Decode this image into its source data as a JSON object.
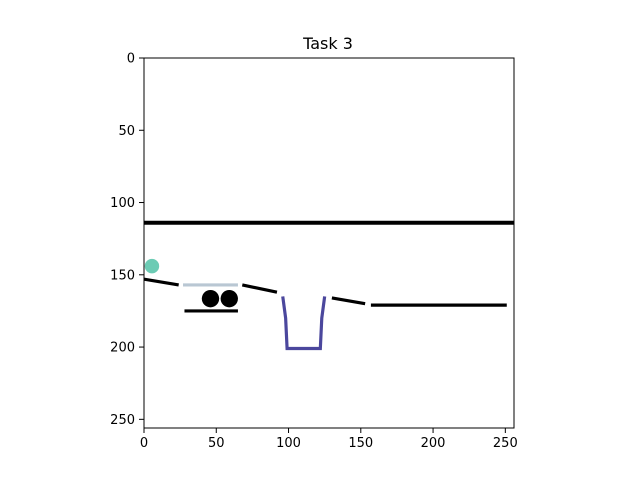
{
  "title": "Task 3",
  "axes": {
    "x_range": [
      0,
      256
    ],
    "y_range": [
      256,
      0
    ],
    "x_ticks": [
      0,
      50,
      100,
      150,
      200,
      250
    ],
    "y_ticks": [
      0,
      50,
      100,
      150,
      200,
      250
    ],
    "y_inverted": true
  },
  "scene": {
    "ball": {
      "name": "teal-ball",
      "color": "#6ccbb4",
      "cx": 5.5,
      "cy": 144,
      "r": 5
    },
    "bars": [
      {
        "name": "top-long-bar",
        "color": "#000000",
        "points": [
          [
            -1,
            114
          ],
          [
            257,
            114
          ]
        ],
        "width": 5
      },
      {
        "name": "left-ramp",
        "color": "#000000",
        "points": [
          [
            0,
            153
          ],
          [
            24,
            157
          ]
        ],
        "width": 4
      },
      {
        "name": "grey-plank",
        "color": "#b9c7d3",
        "points": [
          [
            27,
            157
          ],
          [
            65,
            157
          ]
        ],
        "width": 4
      },
      {
        "name": "middle-ramp",
        "color": "#000000",
        "points": [
          [
            68,
            157
          ],
          [
            92,
            162
          ]
        ],
        "width": 4
      },
      {
        "name": "right-ramp",
        "color": "#000000",
        "points": [
          [
            130,
            166
          ],
          [
            153,
            170
          ]
        ],
        "width": 4
      },
      {
        "name": "right-long-bar",
        "color": "#000000",
        "points": [
          [
            157,
            171
          ],
          [
            251,
            171
          ]
        ],
        "width": 4
      },
      {
        "name": "cart-base",
        "color": "#000000",
        "points": [
          [
            28,
            175
          ],
          [
            65,
            175
          ]
        ],
        "width": 4
      }
    ],
    "wheels": [
      {
        "name": "cart-wheel-left",
        "cx": 46,
        "cy": 166.5,
        "r": 6
      },
      {
        "name": "cart-wheel-right",
        "cx": 59,
        "cy": 166.5,
        "r": 6
      }
    ],
    "cup": {
      "name": "purple-cup",
      "color": "#4b479d",
      "points": [
        [
          96,
          165
        ],
        [
          98,
          180
        ],
        [
          99,
          201
        ],
        [
          122,
          201
        ],
        [
          123,
          180
        ],
        [
          125,
          165
        ]
      ],
      "width": 4
    }
  }
}
